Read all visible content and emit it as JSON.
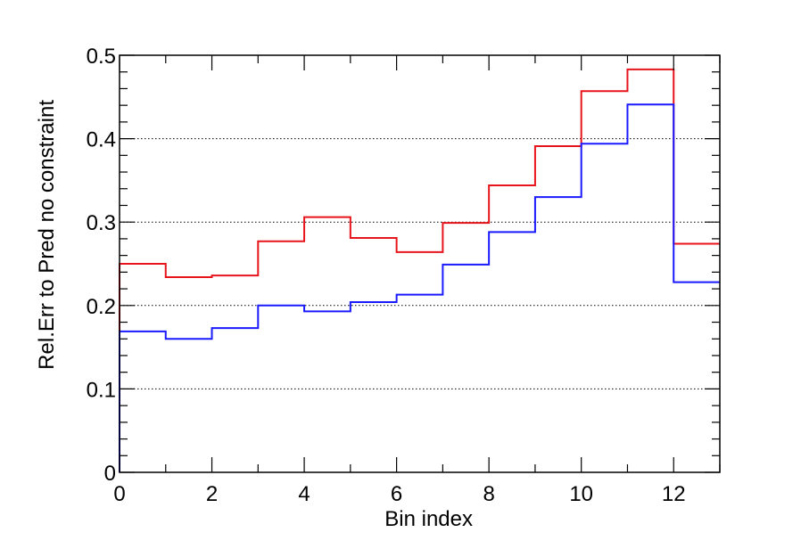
{
  "chart_data": {
    "type": "line",
    "style": "step-histogram",
    "xlabel": "Bin index",
    "ylabel": "Rel.Err to Pred no constraint",
    "xlim": [
      0,
      13
    ],
    "ylim": [
      0,
      0.5
    ],
    "x_ticks": [
      "0",
      "2",
      "4",
      "6",
      "8",
      "10",
      "12"
    ],
    "y_ticks": [
      "0",
      "0.1",
      "0.2",
      "0.3",
      "0.4",
      "0.5"
    ],
    "grid": "horizontal dotted at major y ticks",
    "bin_edges": [
      0,
      1,
      2,
      3,
      4,
      5,
      6,
      7,
      8,
      9,
      10,
      11,
      12,
      13
    ],
    "series": [
      {
        "color": "#e8141b",
        "values": [
          0.25,
          0.234,
          0.236,
          0.277,
          0.306,
          0.281,
          0.264,
          0.299,
          0.344,
          0.391,
          0.457,
          0.483,
          0.274
        ]
      },
      {
        "color": "#1a1aff",
        "values": [
          0.169,
          0.16,
          0.173,
          0.2,
          0.193,
          0.204,
          0.213,
          0.249,
          0.288,
          0.33,
          0.394,
          0.441,
          0.228
        ]
      }
    ]
  }
}
